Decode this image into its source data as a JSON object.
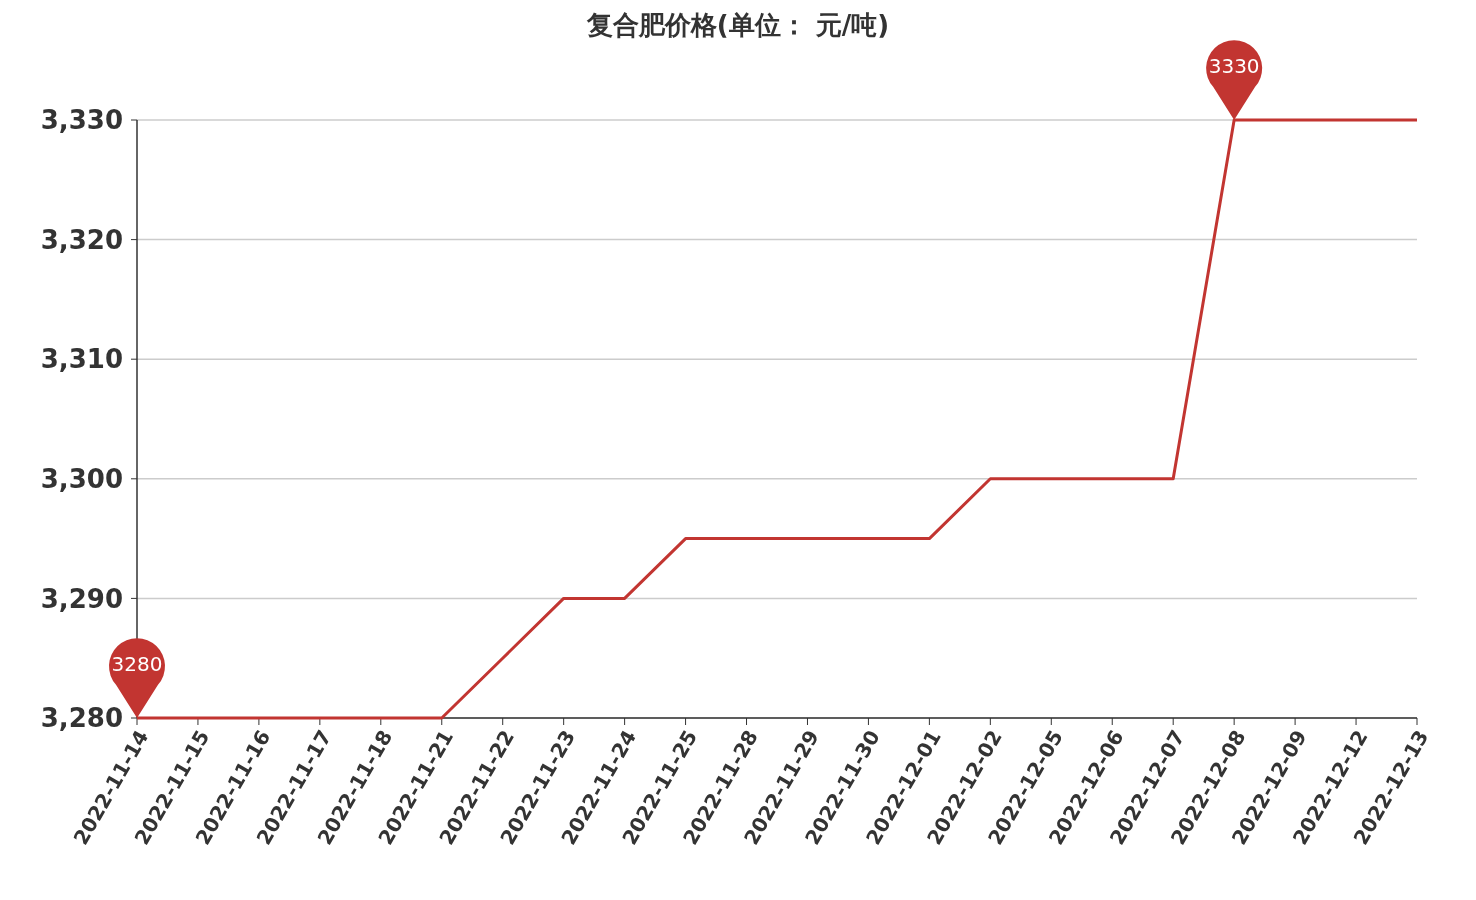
{
  "chart_data": {
    "type": "line",
    "title": "复合肥价格(单位： 元/吨)",
    "categories": [
      "2022-11-14",
      "2022-11-15",
      "2022-11-16",
      "2022-11-17",
      "2022-11-18",
      "2022-11-21",
      "2022-11-22",
      "2022-11-23",
      "2022-11-24",
      "2022-11-25",
      "2022-11-28",
      "2022-11-29",
      "2022-11-30",
      "2022-12-01",
      "2022-12-02",
      "2022-12-05",
      "2022-12-06",
      "2022-12-07",
      "2022-12-08",
      "2022-12-09",
      "2022-12-12",
      "2022-12-13"
    ],
    "series": [
      {
        "color": "#c23531",
        "values": [
          3280,
          3280,
          3280,
          3280,
          3280,
          3280,
          3285,
          3290,
          3290,
          3295,
          3295,
          3295,
          3295,
          3295,
          3300,
          3300,
          3300,
          3300,
          3330,
          3330,
          3330,
          3330
        ]
      }
    ],
    "ylim": [
      3280,
      3330
    ],
    "yticks": [
      {
        "value": 3280,
        "label": "3,280"
      },
      {
        "value": 3290,
        "label": "3,290"
      },
      {
        "value": 3300,
        "label": "3,300"
      },
      {
        "value": 3310,
        "label": "3,310"
      },
      {
        "value": 3320,
        "label": "3,320"
      },
      {
        "value": 3330,
        "label": "3,330"
      }
    ],
    "grid": "y",
    "marker": "none",
    "line_style": "solid",
    "annotations": [
      {
        "text": "3280",
        "x": "2022-11-14",
        "y": 3280
      },
      {
        "text": "3330",
        "x": "2022-12-08",
        "y": 3330
      }
    ]
  }
}
